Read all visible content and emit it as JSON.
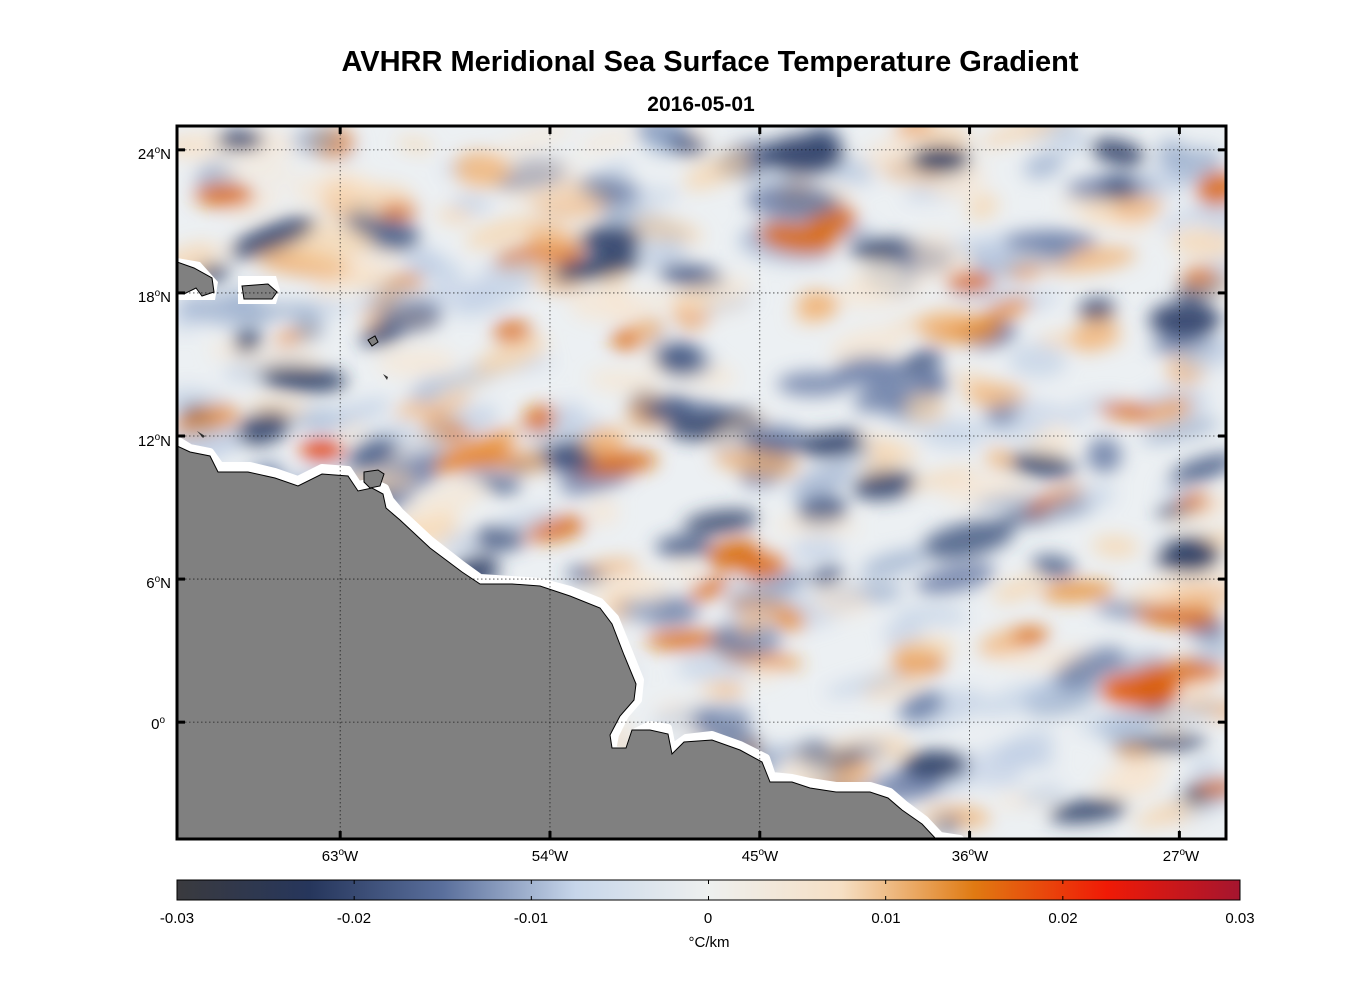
{
  "title": "AVHRR Meridional Sea Surface Temperature Gradient",
  "subtitle": "2016-05-01",
  "map": {
    "lon_ticks": [
      {
        "deg": "63",
        "hemi": "W",
        "lon": -63
      },
      {
        "deg": "54",
        "hemi": "W",
        "lon": -54
      },
      {
        "deg": "45",
        "hemi": "W",
        "lon": -45
      },
      {
        "deg": "36",
        "hemi": "W",
        "lon": -36
      },
      {
        "deg": "27",
        "hemi": "W",
        "lon": -27
      }
    ],
    "lat_ticks": [
      {
        "deg": "24",
        "hemi": "N",
        "lat": 24
      },
      {
        "deg": "18",
        "hemi": "N",
        "lat": 18
      },
      {
        "deg": "12",
        "hemi": "N",
        "lat": 12
      },
      {
        "deg": "6",
        "hemi": "N",
        "lat": 6
      },
      {
        "deg": "0",
        "hemi": "",
        "lat": 0
      }
    ],
    "lon_range": [
      -70,
      -25
    ],
    "lat_range": [
      -4.9,
      25
    ],
    "grid": "dotted",
    "land_color": "#808080"
  },
  "colorbar": {
    "min": -0.03,
    "max": 0.03,
    "tick_labels": [
      "-0.03",
      "-0.02",
      "-0.01",
      "0",
      "0.01",
      "0.02",
      "0.03"
    ],
    "unit": "°C/km",
    "colors": [
      "#3a3a3e",
      "#26365c",
      "#5a6f9c",
      "#c7d6ea",
      "#eef0ef",
      "#f6dfc4",
      "#e07a12",
      "#f01a06",
      "#a5152f"
    ]
  }
}
